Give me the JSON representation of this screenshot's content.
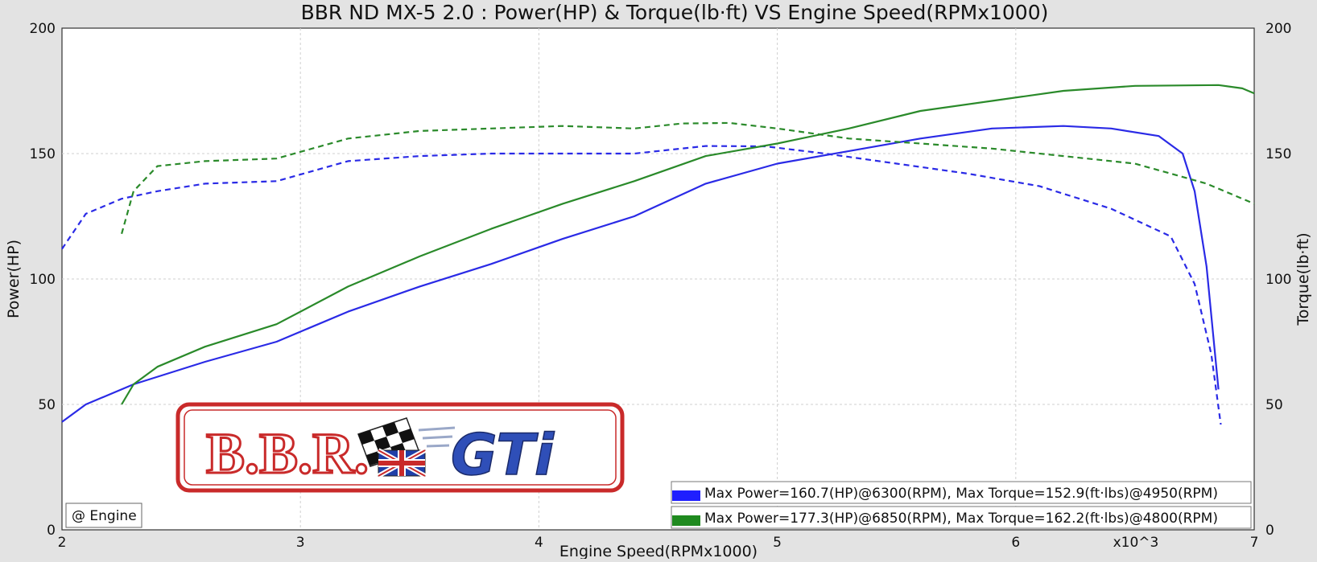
{
  "chart_data": {
    "type": "line",
    "title": "BBR ND MX-5 2.0 : Power(HP) & Torque(lb·ft) VS Engine Speed(RPMx1000)",
    "xlabel": "Engine Speed(RPMx1000)",
    "ylabel": "Power(HP)",
    "y2label": "Torque(lb·ft)",
    "x_multiplier_label": "x10^3",
    "xlim": [
      2,
      7
    ],
    "ylim": [
      0,
      200
    ],
    "y2lim": [
      0,
      200
    ],
    "x_ticks": [
      "2",
      "3",
      "4",
      "5",
      "6",
      "7"
    ],
    "y_ticks": [
      "0",
      "50",
      "100",
      "150",
      "200"
    ],
    "y2_ticks": [
      "0",
      "50",
      "100",
      "150",
      "200"
    ],
    "grid": true,
    "legend_position": "bottom-right",
    "engine_tag": "@ Engine",
    "logo_text": "B.B.R. GTi",
    "series": [
      {
        "color": "#2a2ae6",
        "dashed": false,
        "axis": "left",
        "x": [
          2.0,
          2.1,
          2.3,
          2.6,
          2.9,
          3.2,
          3.5,
          3.8,
          4.1,
          4.4,
          4.7,
          5.0,
          5.3,
          5.6,
          5.9,
          6.2,
          6.4,
          6.6,
          6.7,
          6.75,
          6.8,
          6.85
        ],
        "y": [
          43,
          50,
          58,
          67,
          75,
          87,
          97,
          106,
          116,
          125,
          138,
          146,
          151,
          156,
          160,
          161,
          160,
          157,
          150,
          135,
          105,
          56
        ]
      },
      {
        "color": "#2a2ae6",
        "dashed": true,
        "axis": "right",
        "x": [
          2.0,
          2.1,
          2.25,
          2.4,
          2.6,
          2.9,
          3.2,
          3.5,
          3.8,
          4.1,
          4.4,
          4.7,
          4.95,
          5.2,
          5.5,
          5.8,
          6.1,
          6.4,
          6.65,
          6.75,
          6.82,
          6.86
        ],
        "y": [
          112,
          126,
          132,
          135,
          138,
          139,
          147,
          149,
          150,
          150,
          150,
          153,
          152.9,
          150,
          146,
          142,
          137,
          128,
          117,
          98,
          70,
          42
        ]
      },
      {
        "color": "#2a8a2a",
        "dashed": false,
        "axis": "left",
        "x": [
          2.25,
          2.3,
          2.4,
          2.6,
          2.9,
          3.2,
          3.5,
          3.8,
          4.1,
          4.4,
          4.7,
          5.0,
          5.3,
          5.6,
          5.9,
          6.2,
          6.5,
          6.85,
          6.95,
          7.0
        ],
        "y": [
          50,
          58,
          65,
          73,
          82,
          97,
          109,
          120,
          130,
          139,
          149,
          154,
          160,
          167,
          171,
          175,
          177,
          177.3,
          176,
          174
        ]
      },
      {
        "color": "#2a8a2a",
        "dashed": true,
        "axis": "right",
        "x": [
          2.25,
          2.3,
          2.4,
          2.6,
          2.9,
          3.2,
          3.5,
          3.8,
          4.1,
          4.4,
          4.6,
          4.8,
          5.0,
          5.3,
          5.6,
          5.9,
          6.2,
          6.5,
          6.8,
          7.0
        ],
        "y": [
          118,
          135,
          145,
          147,
          148,
          156,
          159,
          160,
          161,
          160,
          162,
          162.2,
          160,
          156,
          154,
          152,
          149,
          146,
          138,
          130
        ]
      }
    ],
    "legend": [
      {
        "color": "#1f1fff",
        "text": "Max Power=160.7(HP)@6300(RPM), Max Torque=152.9(ft·lbs)@4950(RPM)"
      },
      {
        "color": "#1f8a1f",
        "text": "Max Power=177.3(HP)@6850(RPM), Max Torque=162.2(ft·lbs)@4800(RPM)"
      }
    ]
  }
}
